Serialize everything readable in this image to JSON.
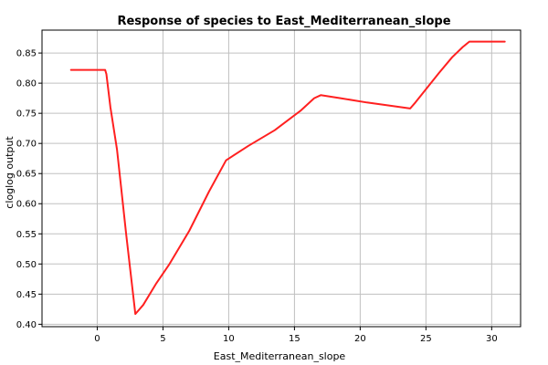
{
  "chart_data": {
    "type": "line",
    "title": "Response of species to East_Mediterranean_slope",
    "xlabel": "East_Mediterranean_slope",
    "ylabel": "cloglog output",
    "xlim": [
      -4.2,
      32.2
    ],
    "ylim": [
      0.396,
      0.888
    ],
    "x_ticks": [
      0,
      5,
      10,
      15,
      20,
      25,
      30
    ],
    "y_ticks": [
      0.4,
      0.45,
      0.5,
      0.55,
      0.6,
      0.65,
      0.7,
      0.75,
      0.8,
      0.85
    ],
    "x_tick_labels": [
      "0",
      "5",
      "10",
      "15",
      "20",
      "25",
      "30"
    ],
    "y_tick_labels": [
      "0.40",
      "0.45",
      "0.50",
      "0.55",
      "0.60",
      "0.65",
      "0.70",
      "0.75",
      "0.80",
      "0.85"
    ],
    "grid": true,
    "legend": "none",
    "series": [
      {
        "color": "#ff2020",
        "x": [
          -2.0,
          0.6,
          0.7,
          1.0,
          1.5,
          1.8,
          2.2,
          2.9,
          3.5,
          4.5,
          5.5,
          7.0,
          8.5,
          9.8,
          11.5,
          13.5,
          15.5,
          16.5,
          17.0,
          18.5,
          20.5,
          22.5,
          23.8,
          24.2,
          25.0,
          26.0,
          27.0,
          27.8,
          28.3,
          31.0
        ],
        "y": [
          0.822,
          0.822,
          0.815,
          0.76,
          0.69,
          0.63,
          0.55,
          0.417,
          0.432,
          0.468,
          0.5,
          0.555,
          0.62,
          0.672,
          0.696,
          0.722,
          0.755,
          0.775,
          0.78,
          0.775,
          0.768,
          0.762,
          0.758,
          0.768,
          0.79,
          0.817,
          0.843,
          0.86,
          0.869,
          0.869
        ]
      }
    ]
  }
}
